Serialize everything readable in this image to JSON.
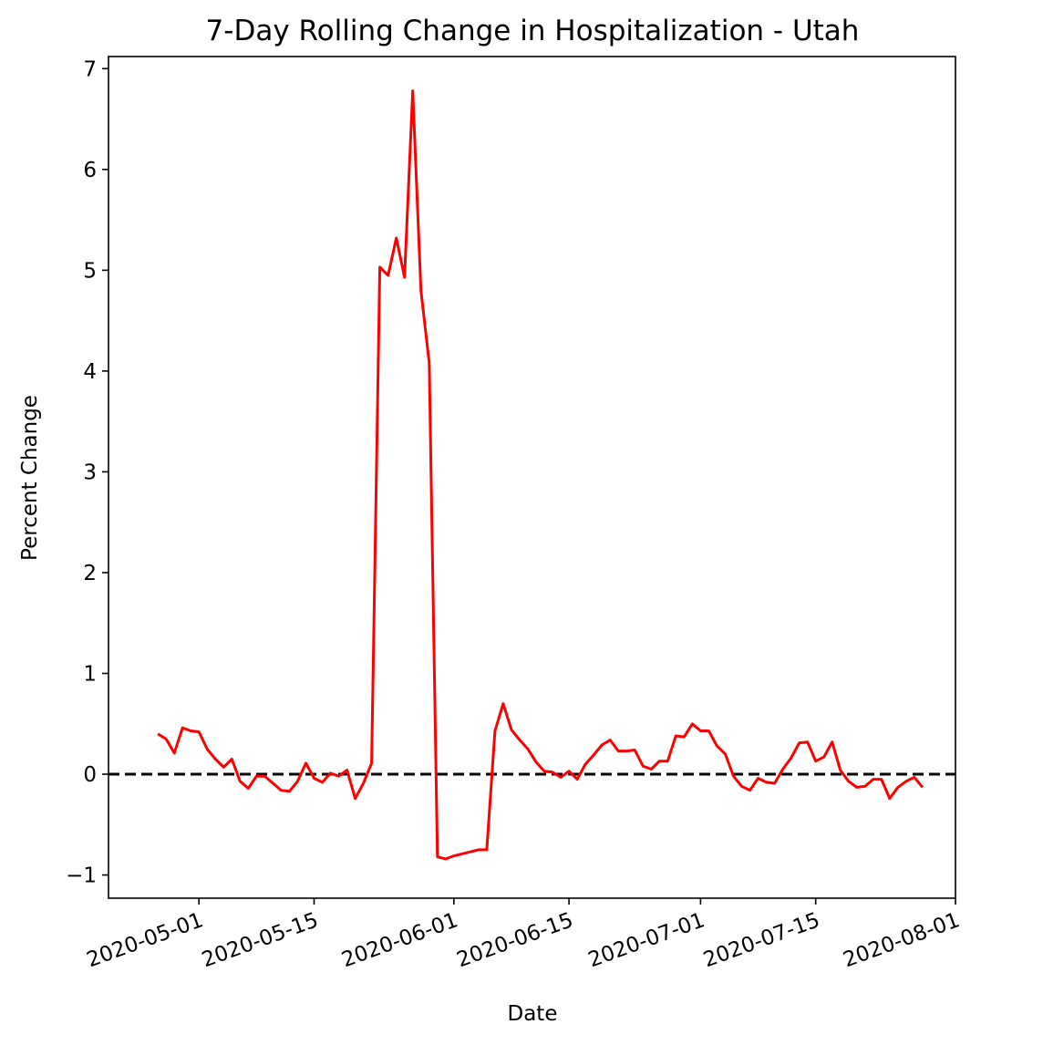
{
  "chart_data": {
    "type": "line",
    "title": "7-Day Rolling Change in Hospitalization - Utah",
    "xlabel": "Date",
    "ylabel": "Percent Change",
    "xlim": [
      "2020-04-20",
      "2020-08-01"
    ],
    "ylim": [
      -1.23,
      7.12
    ],
    "x_ticks": [
      "2020-05-01",
      "2020-05-15",
      "2020-06-01",
      "2020-06-15",
      "2020-07-01",
      "2020-07-15",
      "2020-08-01"
    ],
    "y_ticks": [
      -1,
      0,
      1,
      2,
      3,
      4,
      5,
      6,
      7
    ],
    "y_tick_labels": [
      "−1",
      "0",
      "1",
      "2",
      "3",
      "4",
      "5",
      "6",
      "7"
    ],
    "reference_line": {
      "y": 0,
      "style": "dashed",
      "color": "#000000"
    },
    "grid": false,
    "series": [
      {
        "color": "#ff0000",
        "points": [
          [
            "2020-04-26",
            0.4
          ],
          [
            "2020-04-27",
            0.35
          ],
          [
            "2020-04-28",
            0.21
          ],
          [
            "2020-04-29",
            0.46
          ],
          [
            "2020-04-30",
            0.43
          ],
          [
            "2020-05-01",
            0.42
          ],
          [
            "2020-05-02",
            0.25
          ],
          [
            "2020-05-03",
            0.15
          ],
          [
            "2020-05-04",
            0.07
          ],
          [
            "2020-05-05",
            0.15
          ],
          [
            "2020-05-06",
            -0.07
          ],
          [
            "2020-05-07",
            -0.14
          ],
          [
            "2020-05-08",
            -0.02
          ],
          [
            "2020-05-09",
            -0.02
          ],
          [
            "2020-05-10",
            -0.09
          ],
          [
            "2020-05-11",
            -0.16
          ],
          [
            "2020-05-12",
            -0.17
          ],
          [
            "2020-05-13",
            -0.07
          ],
          [
            "2020-05-14",
            0.11
          ],
          [
            "2020-05-15",
            -0.04
          ],
          [
            "2020-05-16",
            -0.08
          ],
          [
            "2020-05-17",
            0.01
          ],
          [
            "2020-05-18",
            -0.02
          ],
          [
            "2020-05-19",
            0.04
          ],
          [
            "2020-05-20",
            -0.24
          ],
          [
            "2020-05-21",
            -0.09
          ],
          [
            "2020-05-22",
            0.11
          ],
          [
            "2020-05-23",
            5.03
          ],
          [
            "2020-05-24",
            4.95
          ],
          [
            "2020-05-25",
            5.32
          ],
          [
            "2020-05-26",
            4.93
          ],
          [
            "2020-05-27",
            6.78
          ],
          [
            "2020-05-28",
            4.8
          ],
          [
            "2020-05-29",
            4.08
          ],
          [
            "2020-05-30",
            -0.82
          ],
          [
            "2020-05-31",
            -0.84
          ],
          [
            "2020-06-01",
            -0.81
          ],
          [
            "2020-06-02",
            -0.79
          ],
          [
            "2020-06-03",
            -0.77
          ],
          [
            "2020-06-04",
            -0.75
          ],
          [
            "2020-06-05",
            -0.75
          ],
          [
            "2020-06-06",
            0.43
          ],
          [
            "2020-06-07",
            0.7
          ],
          [
            "2020-06-08",
            0.44
          ],
          [
            "2020-06-09",
            0.34
          ],
          [
            "2020-06-10",
            0.25
          ],
          [
            "2020-06-11",
            0.12
          ],
          [
            "2020-06-12",
            0.03
          ],
          [
            "2020-06-13",
            0.02
          ],
          [
            "2020-06-14",
            -0.03
          ],
          [
            "2020-06-15",
            0.03
          ],
          [
            "2020-06-16",
            -0.05
          ],
          [
            "2020-06-17",
            0.1
          ],
          [
            "2020-06-18",
            0.19
          ],
          [
            "2020-06-19",
            0.29
          ],
          [
            "2020-06-20",
            0.34
          ],
          [
            "2020-06-21",
            0.23
          ],
          [
            "2020-06-22",
            0.23
          ],
          [
            "2020-06-23",
            0.24
          ],
          [
            "2020-06-24",
            0.08
          ],
          [
            "2020-06-25",
            0.05
          ],
          [
            "2020-06-26",
            0.13
          ],
          [
            "2020-06-27",
            0.13
          ],
          [
            "2020-06-28",
            0.38
          ],
          [
            "2020-06-29",
            0.37
          ],
          [
            "2020-06-30",
            0.5
          ],
          [
            "2020-07-01",
            0.43
          ],
          [
            "2020-07-02",
            0.43
          ],
          [
            "2020-07-03",
            0.28
          ],
          [
            "2020-07-04",
            0.2
          ],
          [
            "2020-07-05",
            -0.02
          ],
          [
            "2020-07-06",
            -0.12
          ],
          [
            "2020-07-07",
            -0.16
          ],
          [
            "2020-07-08",
            -0.04
          ],
          [
            "2020-07-09",
            -0.08
          ],
          [
            "2020-07-10",
            -0.09
          ],
          [
            "2020-07-11",
            0.05
          ],
          [
            "2020-07-12",
            0.16
          ],
          [
            "2020-07-13",
            0.31
          ],
          [
            "2020-07-14",
            0.32
          ],
          [
            "2020-07-15",
            0.13
          ],
          [
            "2020-07-16",
            0.17
          ],
          [
            "2020-07-17",
            0.32
          ],
          [
            "2020-07-18",
            0.04
          ],
          [
            "2020-07-19",
            -0.07
          ],
          [
            "2020-07-20",
            -0.13
          ],
          [
            "2020-07-21",
            -0.12
          ],
          [
            "2020-07-22",
            -0.05
          ],
          [
            "2020-07-23",
            -0.05
          ],
          [
            "2020-07-24",
            -0.24
          ],
          [
            "2020-07-25",
            -0.13
          ],
          [
            "2020-07-26",
            -0.07
          ],
          [
            "2020-07-27",
            -0.03
          ],
          [
            "2020-07-28",
            -0.13
          ]
        ]
      }
    ]
  }
}
